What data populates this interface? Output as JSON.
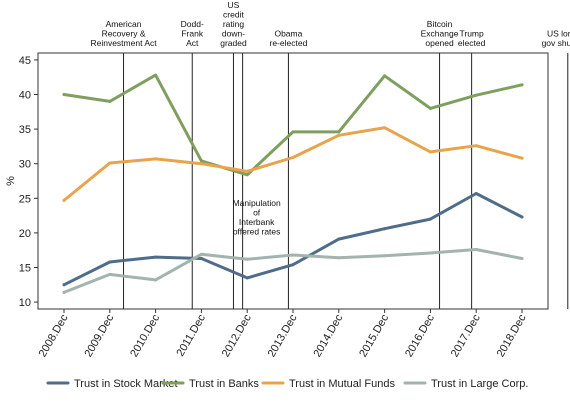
{
  "chart_data": {
    "type": "line",
    "ylabel": "%",
    "ylim": [
      9,
      46
    ],
    "yticks": [
      10,
      15,
      20,
      25,
      30,
      35,
      40,
      45
    ],
    "categories": [
      "2008.Dec",
      "2009.Dec",
      "2010.Dec",
      "2011.Dec",
      "2012.Dec",
      "2013.Dec",
      "2014.Dec",
      "2015.Dec",
      "2016.Dec",
      "2017.Dec",
      "2018.Dec"
    ],
    "grid": false,
    "legend_position": "bottom",
    "series": [
      {
        "name": "Trust in Stock Market",
        "color": "#4f6d8a",
        "values": [
          12.5,
          15.8,
          16.5,
          16.3,
          13.5,
          15.4,
          19.1,
          20.6,
          22.0,
          25.7,
          22.3
        ]
      },
      {
        "name": "Trust in Banks",
        "color": "#7f9f5e",
        "values": [
          40.0,
          39.0,
          42.8,
          30.4,
          28.4,
          34.6,
          34.6,
          42.7,
          38.0,
          39.9,
          41.4
        ]
      },
      {
        "name": "Trust in Mutual Funds",
        "color": "#e8a44c",
        "values": [
          24.7,
          30.1,
          30.7,
          30.0,
          28.9,
          30.9,
          34.1,
          35.2,
          31.7,
          32.6,
          30.8
        ]
      },
      {
        "name": "Trust in Large Corp.",
        "color": "#a3b3ad",
        "values": [
          11.4,
          14.0,
          13.2,
          16.9,
          16.2,
          16.8,
          16.4,
          16.7,
          17.1,
          17.6,
          16.3
        ]
      }
    ],
    "events": [
      {
        "id": "arra",
        "x": 2009.3,
        "lines": [
          "American",
          "Recovery &",
          "Reinvestment Act"
        ],
        "placement": "top"
      },
      {
        "id": "dodd-frank",
        "x": 2010.8,
        "lines": [
          "Dodd-",
          "Frank",
          "Act"
        ],
        "placement": "top"
      },
      {
        "id": "us-rating",
        "x": 2011.7,
        "lines": [
          "US",
          "credit",
          "rating",
          "down-",
          "graded"
        ],
        "placement": "top"
      },
      {
        "id": "libor",
        "x": 2011.9,
        "lines": [
          "Manipulation",
          "of",
          "Interbank",
          "offered rates"
        ],
        "placement": "middle"
      },
      {
        "id": "obama",
        "x": 2012.9,
        "lines": [
          "Obama",
          "re-elected"
        ],
        "placement": "top"
      },
      {
        "id": "bitcoin",
        "x": 2016.2,
        "lines": [
          "Bitcoin",
          "Exchange",
          "opened"
        ],
        "placement": "top"
      },
      {
        "id": "trump",
        "x": 2016.9,
        "lines": [
          "Trump",
          "elected"
        ],
        "placement": "top"
      },
      {
        "id": "shutdown",
        "x": 2019.0,
        "lines": [
          "US longest",
          "gov shutdown"
        ],
        "placement": "top"
      }
    ]
  }
}
